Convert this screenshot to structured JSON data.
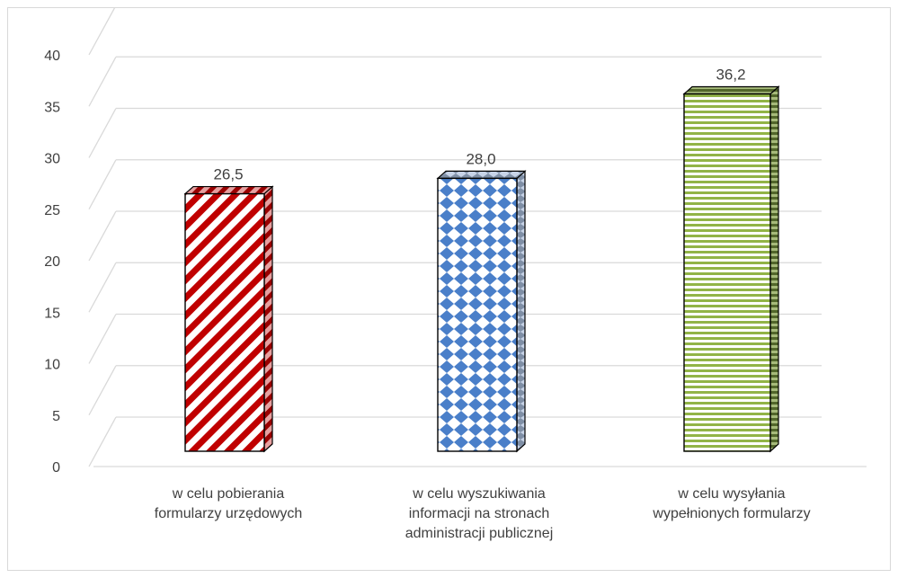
{
  "chart_data": {
    "type": "bar",
    "title": "",
    "xlabel": "",
    "ylabel": "",
    "ylim": [
      0,
      40
    ],
    "yticks": [
      0,
      5,
      10,
      15,
      20,
      25,
      30,
      35,
      40
    ],
    "grid": true,
    "legend": "none",
    "categories": [
      [
        "w celu pobierania",
        "formularzy urzędowych"
      ],
      [
        "w celu wyszukiwania",
        "informacji na stronach",
        "administracji publicznej"
      ],
      [
        "w celu wysyłania",
        "wypełnionych formularzy"
      ]
    ],
    "values": [
      26.5,
      28.0,
      36.2
    ],
    "value_labels": [
      "26,5",
      "28,0",
      "36,2"
    ],
    "colors": {
      "bar1": "#c00000",
      "bar2": "#4472c4",
      "bar3": "#92b447",
      "grid": "#d9d9d9",
      "text": "#404040"
    }
  }
}
